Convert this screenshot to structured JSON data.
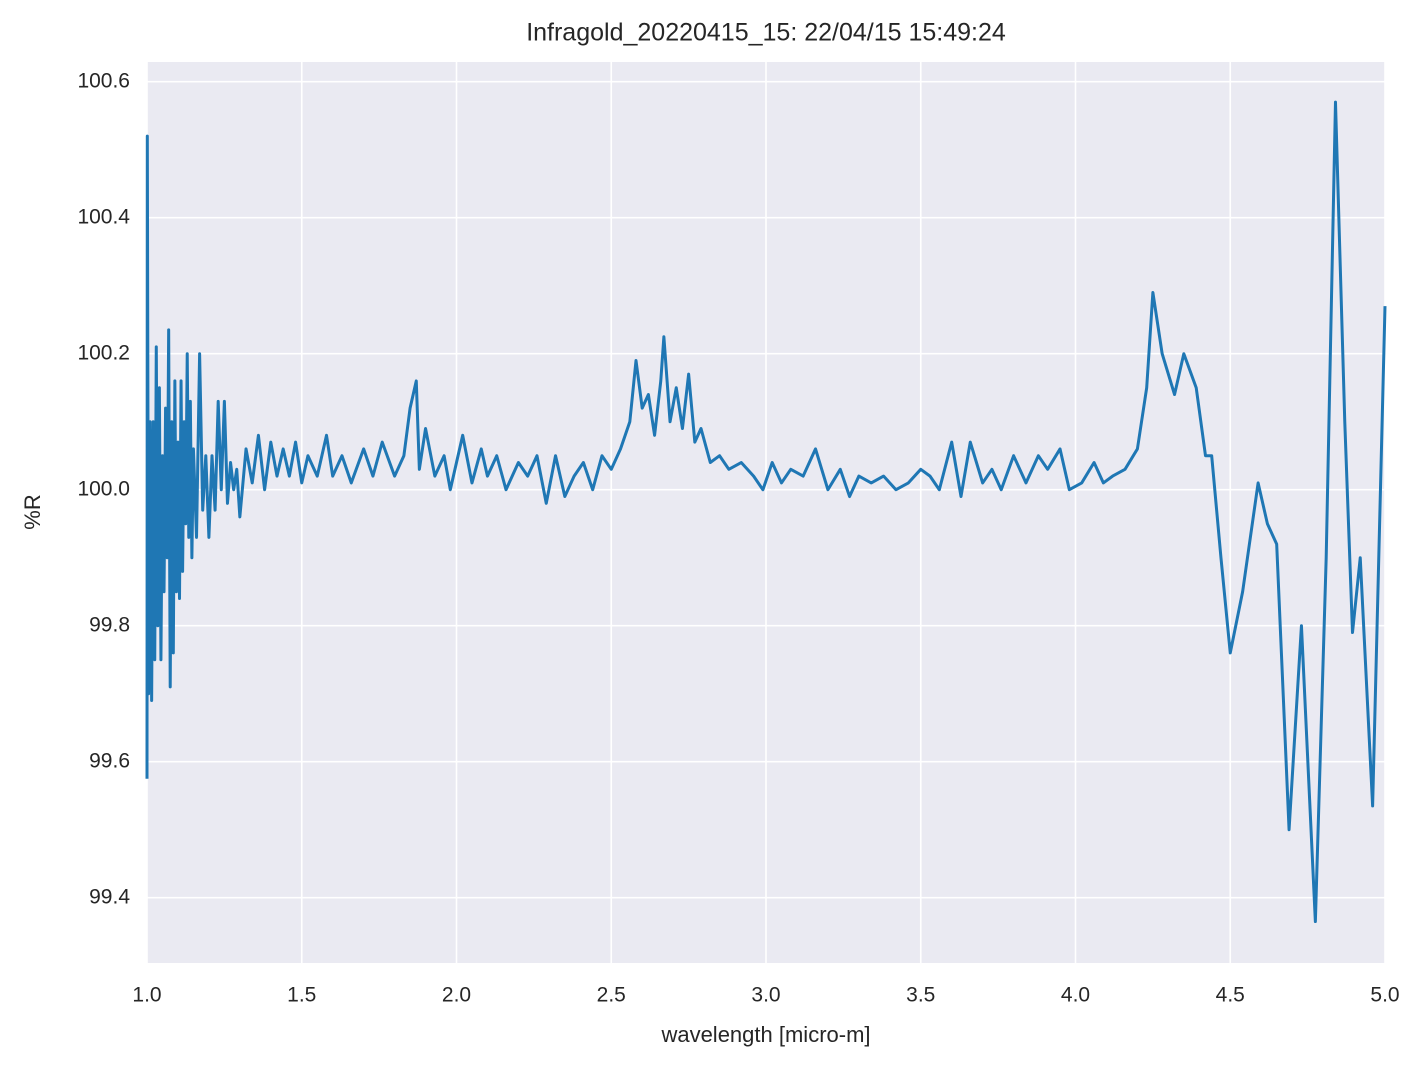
{
  "chart_data": {
    "type": "line",
    "title": "Infragold_20220415_15:  22/04/15 15:49:24",
    "x_label": "wavelength [micro-m]",
    "y_label": "%R",
    "xlim": [
      1.0,
      5.0
    ],
    "ylim": [
      99.304,
      100.629
    ],
    "xticks": [
      {
        "value": 1,
        "label": "1.0"
      },
      1.5,
      {
        "value": 2,
        "label": "2.0"
      },
      2.5,
      {
        "value": 3,
        "label": "3.0"
      },
      3.5,
      {
        "value": 4,
        "label": "4.0"
      },
      4.5,
      {
        "value": 5,
        "label": "5.0"
      }
    ],
    "yticks": [
      99.4,
      99.6,
      99.8,
      {
        "value": 100,
        "label": "100.0"
      },
      100.2,
      100.4,
      100.6
    ],
    "grid": true,
    "background": "#eaeaf2",
    "series": [
      {
        "color": "#1f77b4",
        "x": [
          1.0,
          1.001,
          1.005,
          1.01,
          1.015,
          1.02,
          1.025,
          1.03,
          1.035,
          1.04,
          1.045,
          1.05,
          1.055,
          1.06,
          1.065,
          1.07,
          1.075,
          1.08,
          1.085,
          1.09,
          1.095,
          1.1,
          1.105,
          1.11,
          1.115,
          1.12,
          1.125,
          1.13,
          1.135,
          1.14,
          1.145,
          1.15,
          1.16,
          1.17,
          1.18,
          1.19,
          1.2,
          1.21,
          1.22,
          1.23,
          1.24,
          1.25,
          1.26,
          1.27,
          1.28,
          1.29,
          1.3,
          1.32,
          1.34,
          1.36,
          1.38,
          1.4,
          1.42,
          1.44,
          1.46,
          1.48,
          1.5,
          1.52,
          1.55,
          1.58,
          1.6,
          1.63,
          1.66,
          1.7,
          1.73,
          1.76,
          1.8,
          1.83,
          1.85,
          1.87,
          1.88,
          1.9,
          1.93,
          1.96,
          1.98,
          2.0,
          2.02,
          2.05,
          2.08,
          2.1,
          2.13,
          2.16,
          2.2,
          2.23,
          2.26,
          2.29,
          2.32,
          2.35,
          2.38,
          2.41,
          2.44,
          2.47,
          2.5,
          2.53,
          2.56,
          2.58,
          2.6,
          2.62,
          2.64,
          2.66,
          2.67,
          2.69,
          2.71,
          2.73,
          2.75,
          2.77,
          2.79,
          2.82,
          2.85,
          2.88,
          2.92,
          2.96,
          2.99,
          3.02,
          3.05,
          3.08,
          3.12,
          3.16,
          3.2,
          3.24,
          3.27,
          3.3,
          3.34,
          3.38,
          3.42,
          3.46,
          3.5,
          3.53,
          3.56,
          3.6,
          3.63,
          3.66,
          3.7,
          3.73,
          3.76,
          3.8,
          3.84,
          3.88,
          3.91,
          3.95,
          3.98,
          4.02,
          4.06,
          4.09,
          4.12,
          4.16,
          4.2,
          4.23,
          4.25,
          4.28,
          4.32,
          4.35,
          4.39,
          4.42,
          4.44,
          4.47,
          4.5,
          4.54,
          4.59,
          4.62,
          4.65,
          4.69,
          4.73,
          4.775,
          4.81,
          4.84,
          4.87,
          4.895,
          4.92,
          4.96,
          5.0
        ],
        "values": [
          99.575,
          100.52,
          99.7,
          100.1,
          99.69,
          100.1,
          99.75,
          100.21,
          99.8,
          100.15,
          99.75,
          100.05,
          99.85,
          100.12,
          99.9,
          100.235,
          99.71,
          100.1,
          99.76,
          100.16,
          99.85,
          100.07,
          99.84,
          100.16,
          99.88,
          100.1,
          99.95,
          100.2,
          99.93,
          100.13,
          99.9,
          100.06,
          99.93,
          100.2,
          99.97,
          100.05,
          99.93,
          100.05,
          99.97,
          100.13,
          100.0,
          100.13,
          99.98,
          100.04,
          100.0,
          100.03,
          99.96,
          100.06,
          100.01,
          100.08,
          100.0,
          100.07,
          100.02,
          100.06,
          100.02,
          100.07,
          100.01,
          100.05,
          100.02,
          100.08,
          100.02,
          100.05,
          100.01,
          100.06,
          100.02,
          100.07,
          100.02,
          100.05,
          100.12,
          100.16,
          100.03,
          100.09,
          100.02,
          100.05,
          100.0,
          100.04,
          100.08,
          100.01,
          100.06,
          100.02,
          100.05,
          100.0,
          100.04,
          100.02,
          100.05,
          99.98,
          100.05,
          99.99,
          100.02,
          100.04,
          100.0,
          100.05,
          100.03,
          100.06,
          100.1,
          100.19,
          100.12,
          100.14,
          100.08,
          100.16,
          100.225,
          100.1,
          100.15,
          100.09,
          100.17,
          100.07,
          100.09,
          100.04,
          100.05,
          100.03,
          100.04,
          100.02,
          100.0,
          100.04,
          100.01,
          100.03,
          100.02,
          100.06,
          100.0,
          100.03,
          99.99,
          100.02,
          100.01,
          100.02,
          100.0,
          100.01,
          100.03,
          100.02,
          100.0,
          100.07,
          99.99,
          100.07,
          100.01,
          100.03,
          100.0,
          100.05,
          100.01,
          100.05,
          100.03,
          100.06,
          100.0,
          100.01,
          100.04,
          100.01,
          100.02,
          100.03,
          100.06,
          100.15,
          100.29,
          100.2,
          100.14,
          100.2,
          100.15,
          100.05,
          100.05,
          99.9,
          99.76,
          99.85,
          100.01,
          99.95,
          99.92,
          99.5,
          99.8,
          99.365,
          99.9,
          100.57,
          100.1,
          99.79,
          99.9,
          99.535,
          100.27
        ]
      }
    ]
  }
}
